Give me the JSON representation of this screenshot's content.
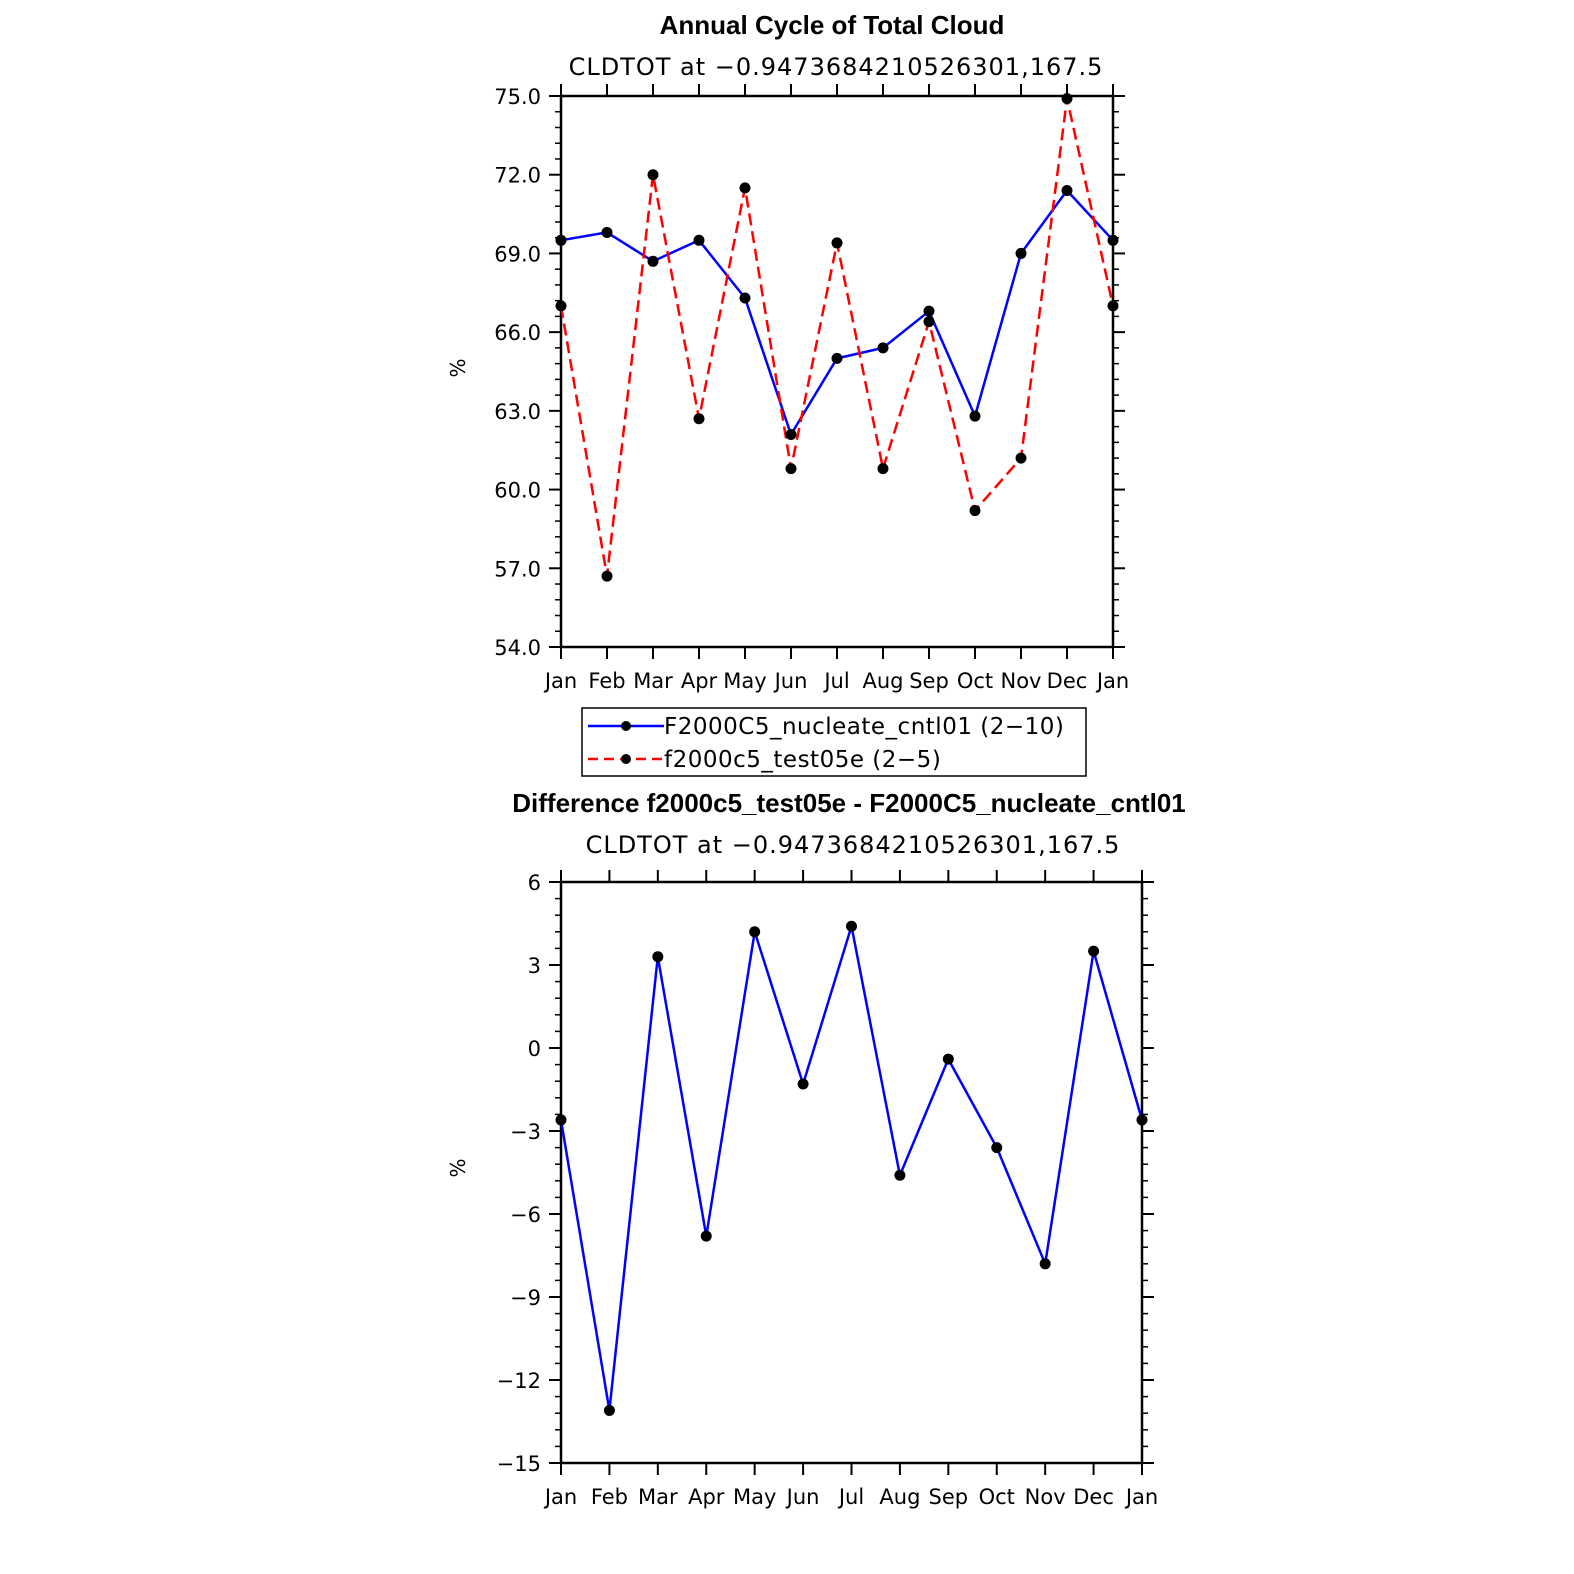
{
  "chart_data": [
    {
      "type": "line",
      "title": "Annual Cycle of Total Cloud",
      "subtitle": "CLDTOT at −0.9473684210526301,167.5",
      "ylabel": "%",
      "xlabel": "",
      "categories": [
        "Jan",
        "Feb",
        "Mar",
        "Apr",
        "May",
        "Jun",
        "Jul",
        "Aug",
        "Sep",
        "Oct",
        "Nov",
        "Dec",
        "Jan"
      ],
      "ylim": [
        54.0,
        75.0
      ],
      "yticks": [
        "54.0",
        "57.0",
        "60.0",
        "63.0",
        "66.0",
        "69.0",
        "72.0",
        "75.0"
      ],
      "series": [
        {
          "name": "F2000C5_nucleate_cntl01 (2−10)",
          "color": "#0000ff",
          "style": "solid",
          "values": [
            69.5,
            69.8,
            68.7,
            69.5,
            67.3,
            62.1,
            65.0,
            65.4,
            66.8,
            62.8,
            69.0,
            71.4,
            69.5
          ]
        },
        {
          "name": "f2000c5_test05e (2−5)",
          "color": "#ff0000",
          "style": "dashed",
          "values": [
            67.0,
            56.7,
            72.0,
            62.7,
            71.5,
            60.8,
            69.4,
            60.8,
            66.4,
            59.2,
            61.2,
            74.9,
            67.0
          ]
        }
      ],
      "marker_color": "#000000",
      "grid": false
    },
    {
      "type": "line",
      "title": "Difference f2000c5_test05e - F2000C5_nucleate_cntl01",
      "subtitle": "CLDTOT at −0.9473684210526301,167.5",
      "ylabel": "%",
      "xlabel": "",
      "categories": [
        "Jan",
        "Feb",
        "Mar",
        "Apr",
        "May",
        "Jun",
        "Jul",
        "Aug",
        "Sep",
        "Oct",
        "Nov",
        "Dec",
        "Jan"
      ],
      "ylim": [
        -15,
        6
      ],
      "yticks": [
        "−15",
        "−12",
        "−9",
        "−6",
        "−3",
        "0",
        "3",
        "6"
      ],
      "series": [
        {
          "name": "difference",
          "color": "#0000ff",
          "style": "solid",
          "values": [
            -2.6,
            -13.1,
            3.3,
            -6.8,
            4.2,
            -1.3,
            4.4,
            -4.6,
            -0.4,
            -3.6,
            -7.8,
            3.5,
            -2.6
          ]
        }
      ],
      "marker_color": "#000000",
      "grid": false
    }
  ]
}
